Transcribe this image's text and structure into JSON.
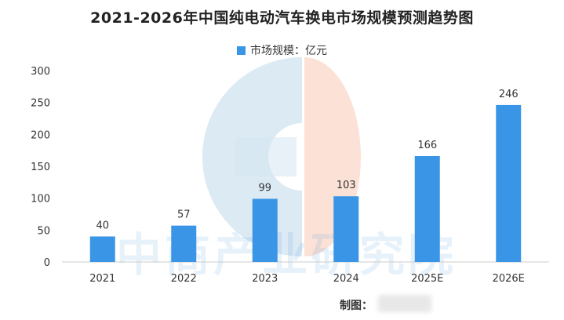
{
  "chart_data": {
    "type": "bar",
    "title": "2021-2026年中国纯电动汽车换电市场规模预测趋势图",
    "legend": "市场规模：亿元",
    "legend_position": "top-center",
    "categories": [
      "2021",
      "2022",
      "2023",
      "2024",
      "2025E",
      "2026E"
    ],
    "series": [
      {
        "name": "市场规模：亿元",
        "values": [
          40,
          57,
          99,
          103,
          166,
          246
        ]
      }
    ],
    "data_labels": [
      "40",
      "57",
      "99",
      "103",
      "166",
      "246"
    ],
    "ylim": [
      0,
      300
    ],
    "yticks": [
      "0",
      "50",
      "100",
      "150",
      "200",
      "250",
      "300"
    ],
    "grid": false,
    "bar_color": "#3b95e6"
  },
  "source_label": "制图：",
  "watermark": "中商产业研究院",
  "colors": {
    "bar": "#3b95e6",
    "axis": "#cccccc",
    "text": "#333333",
    "logo_blue": "#d6e6f2",
    "logo_peach": "#fadccf"
  }
}
